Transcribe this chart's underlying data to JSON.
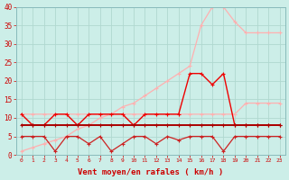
{
  "x": [
    0,
    1,
    2,
    3,
    4,
    5,
    6,
    7,
    8,
    9,
    10,
    11,
    12,
    13,
    14,
    15,
    16,
    17,
    18,
    19,
    20,
    21,
    22,
    23
  ],
  "series": {
    "light_pink_trend": [
      1,
      2,
      3,
      4,
      5,
      7,
      8,
      10,
      11,
      13,
      14,
      16,
      18,
      20,
      22,
      24,
      35,
      40,
      40,
      36,
      33,
      33,
      33,
      33
    ],
    "medium_pink_flat": [
      11,
      11,
      11,
      11,
      11,
      11,
      11,
      11,
      11,
      11,
      11,
      11,
      11,
      11,
      11,
      11,
      11,
      11,
      11,
      11,
      14,
      14,
      14,
      14
    ],
    "red_jagged_hi": [
      11,
      8,
      8,
      11,
      11,
      8,
      11,
      11,
      11,
      11,
      8,
      11,
      11,
      11,
      11,
      22,
      22,
      19,
      22,
      8,
      8,
      8,
      8,
      8
    ],
    "red_flat_mid": [
      8,
      8,
      8,
      8,
      8,
      8,
      8,
      8,
      8,
      8,
      8,
      8,
      8,
      8,
      8,
      8,
      8,
      8,
      8,
      8,
      8,
      8,
      8,
      8
    ],
    "red_low_jagged": [
      5,
      5,
      5,
      1,
      5,
      5,
      3,
      5,
      1,
      3,
      5,
      5,
      3,
      5,
      4,
      5,
      5,
      5,
      1,
      5,
      5,
      5,
      5,
      5
    ]
  },
  "lw": {
    "light_pink_trend": 0.9,
    "medium_pink_flat": 0.9,
    "red_jagged_hi": 1.0,
    "red_flat_mid": 1.4,
    "red_low_jagged": 0.9
  },
  "colors": {
    "light_pink_trend": "#ffb0b0",
    "medium_pink_flat": "#ffb0b0",
    "red_jagged_hi": "#ee0000",
    "red_flat_mid": "#aa0000",
    "red_low_jagged": "#cc2222"
  },
  "markers": {
    "light_pink_trend": "+",
    "medium_pink_flat": "+",
    "red_jagged_hi": "+",
    "red_flat_mid": "+",
    "red_low_jagged": "+"
  },
  "bg_color": "#cceee8",
  "grid_color": "#b0d8d0",
  "xlabel": "Vent moyen/en rafales ( km/h )",
  "xlabel_color": "#cc0000",
  "tick_color": "#cc0000",
  "ylim": [
    0,
    40
  ],
  "xlim": [
    -0.5,
    23.5
  ],
  "yticks": [
    0,
    5,
    10,
    15,
    20,
    25,
    30,
    35,
    40
  ]
}
